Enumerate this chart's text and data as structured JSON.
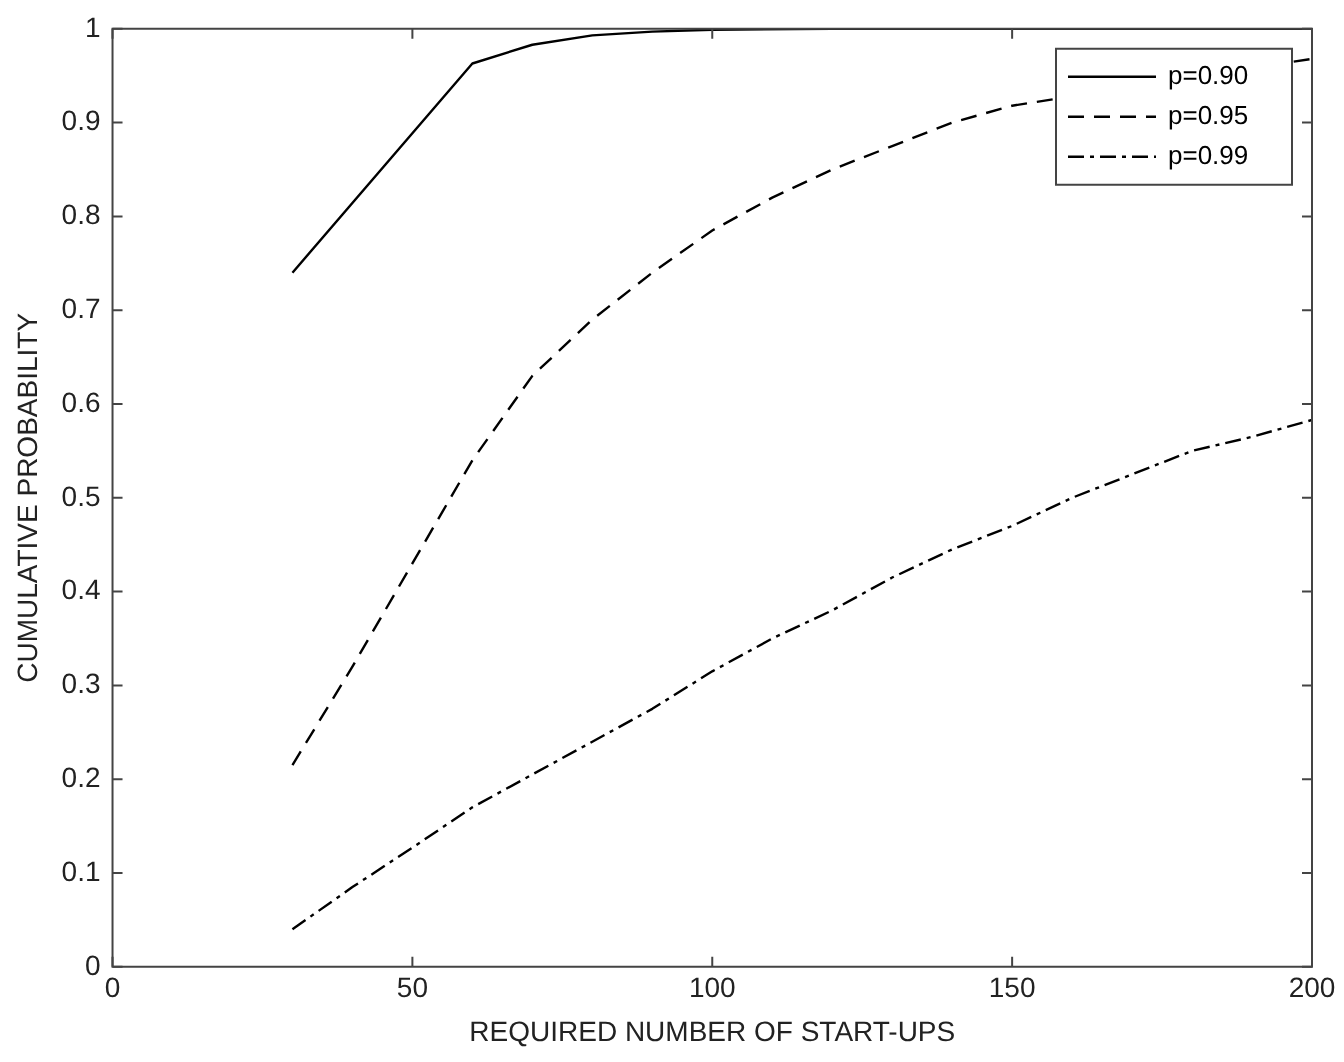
{
  "chart_data": {
    "type": "line",
    "xlabel": "REQUIRED NUMBER OF START-UPS",
    "ylabel": "CUMULATIVE PROBABILITY",
    "xlim": [
      0,
      200
    ],
    "xticks": [
      0,
      50,
      100,
      150,
      200
    ],
    "ylim": [
      0,
      1
    ],
    "yticks": [
      0,
      0.1,
      0.2,
      0.3,
      0.4,
      0.5,
      0.6,
      0.7,
      0.8,
      0.9,
      1
    ],
    "grid": false,
    "legend": "top right",
    "marker": "none",
    "series": [
      {
        "name": "p=0.90",
        "color": "#000000",
        "line_style": "solid",
        "x": [
          30,
          60,
          70,
          80,
          90,
          100,
          120,
          150,
          200
        ],
        "values": [
          0.74,
          0.963,
          0.983,
          0.993,
          0.997,
          0.999,
          1,
          1,
          1
        ]
      },
      {
        "name": "p=0.95",
        "color": "#000000",
        "line_style": "dashed",
        "x": [
          30,
          40,
          50,
          60,
          70,
          80,
          90,
          100,
          110,
          120,
          130,
          140,
          150,
          160,
          170,
          180,
          190,
          200
        ],
        "values": [
          0.215,
          0.32,
          0.43,
          0.54,
          0.63,
          0.69,
          0.74,
          0.785,
          0.82,
          0.85,
          0.875,
          0.9,
          0.918,
          null,
          null,
          null,
          null,
          0.968
        ]
      },
      {
        "name": "p=0.99",
        "color": "#000000",
        "line_style": "dashdot",
        "x": [
          30,
          40,
          50,
          60,
          70,
          80,
          90,
          100,
          110,
          120,
          130,
          140,
          150,
          160,
          170,
          180,
          190,
          200
        ],
        "values": [
          0.04,
          0.085,
          0.127,
          0.17,
          0.205,
          0.24,
          0.275,
          0.315,
          0.35,
          0.38,
          0.415,
          0.445,
          0.47,
          0.5,
          0.525,
          0.55,
          0.565,
          0.583
        ]
      }
    ]
  }
}
